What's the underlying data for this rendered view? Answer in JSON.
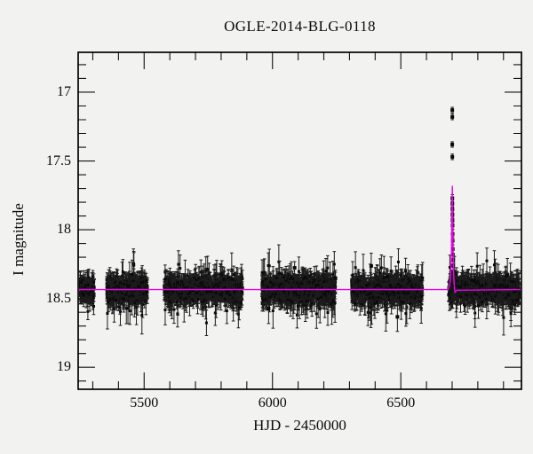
{
  "chart_data": {
    "type": "scatter",
    "title": "OGLE-2014-BLG-0118",
    "xlabel": "HJD - 2450000",
    "ylabel": "I magnitude",
    "x_range": [
      5243,
      6970
    ],
    "y_range_mag": [
      16.71,
      19.16
    ],
    "y_axis_inverted": true,
    "x_ticks": [
      {
        "label": "5500",
        "value": 5500
      },
      {
        "label": "6000",
        "value": 6000
      },
      {
        "label": "6500",
        "value": 6500
      }
    ],
    "x_minor_step": 100,
    "y_ticks": [
      {
        "label": "17",
        "value": 17
      },
      {
        "label": "17.5",
        "value": 17.5
      },
      {
        "label": "18",
        "value": 18
      },
      {
        "label": "18.5",
        "value": 18.5
      },
      {
        "label": "19",
        "value": 19
      }
    ],
    "y_minor_step": 0.1,
    "baseline_mag": 18.435,
    "scatter_sigma_mag": 0.042,
    "typical_error_mag": 0.05,
    "point_color": "#0a0a0a",
    "errorbar_color": "#1c1c1c",
    "model_color": "#ee00ee",
    "background": "#f2f2f0",
    "seasons": [
      {
        "hjd_start": 5250,
        "hjd_end": 5306,
        "n": 115
      },
      {
        "hjd_start": 5354,
        "hjd_end": 5513,
        "n": 380
      },
      {
        "hjd_start": 5579,
        "hjd_end": 5883,
        "n": 780
      },
      {
        "hjd_start": 5959,
        "hjd_end": 6246,
        "n": 760
      },
      {
        "hjd_start": 6309,
        "hjd_end": 6585,
        "n": 720
      },
      {
        "hjd_start": 6686,
        "hjd_end": 6963,
        "n": 660
      }
    ],
    "event": {
      "t_peak": 6700.8,
      "peak_mag": 17.13,
      "peak_points": [
        {
          "hjd": 6700.5,
          "mag": 17.13,
          "err": 0.02
        },
        {
          "hjd": 6700.6,
          "mag": 17.18,
          "err": 0.02
        },
        {
          "hjd": 6700.3,
          "mag": 17.38,
          "err": 0.02
        },
        {
          "hjd": 6700.7,
          "mag": 17.47,
          "err": 0.02
        },
        {
          "hjd": 6700.9,
          "mag": 17.77,
          "err": 0.025
        },
        {
          "hjd": 6701.0,
          "mag": 17.81,
          "err": 0.025
        },
        {
          "hjd": 6701.1,
          "mag": 17.85,
          "err": 0.025
        },
        {
          "hjd": 6701.3,
          "mag": 17.89,
          "err": 0.025
        },
        {
          "hjd": 6701.5,
          "mag": 17.93,
          "err": 0.025
        },
        {
          "hjd": 6701.7,
          "mag": 17.97,
          "err": 0.025
        },
        {
          "hjd": 6701.9,
          "mag": 18.03,
          "err": 0.03
        },
        {
          "hjd": 6702.2,
          "mag": 18.08,
          "err": 0.03
        },
        {
          "hjd": 6702.5,
          "mag": 18.14,
          "err": 0.03
        },
        {
          "hjd": 6702.8,
          "mag": 18.18,
          "err": 0.03
        },
        {
          "hjd": 6703.1,
          "mag": 18.22,
          "err": 0.035
        },
        {
          "hjd": 6703.5,
          "mag": 18.26,
          "err": 0.035
        },
        {
          "hjd": 6704.0,
          "mag": 18.31,
          "err": 0.035
        }
      ]
    },
    "model_curve": [
      {
        "hjd": 6684.0,
        "mag": 18.43
      },
      {
        "hjd": 6690.0,
        "mag": 18.41
      },
      {
        "hjd": 6694.0,
        "mag": 18.34
      },
      {
        "hjd": 6696.5,
        "mag": 18.22
      },
      {
        "hjd": 6698.5,
        "mag": 18.02
      },
      {
        "hjd": 6700.0,
        "mag": 17.8
      },
      {
        "hjd": 6700.8,
        "mag": 17.68
      },
      {
        "hjd": 6701.6,
        "mag": 17.82
      },
      {
        "hjd": 6703.0,
        "mag": 18.05
      },
      {
        "hjd": 6704.5,
        "mag": 18.22
      },
      {
        "hjd": 6706.5,
        "mag": 18.35
      },
      {
        "hjd": 6709.0,
        "mag": 18.43
      },
      {
        "hjd": 6711.0,
        "mag": 18.455
      },
      {
        "hjd": 6714.0,
        "mag": 18.45
      },
      {
        "hjd": 6718.0,
        "mag": 18.44
      }
    ]
  }
}
